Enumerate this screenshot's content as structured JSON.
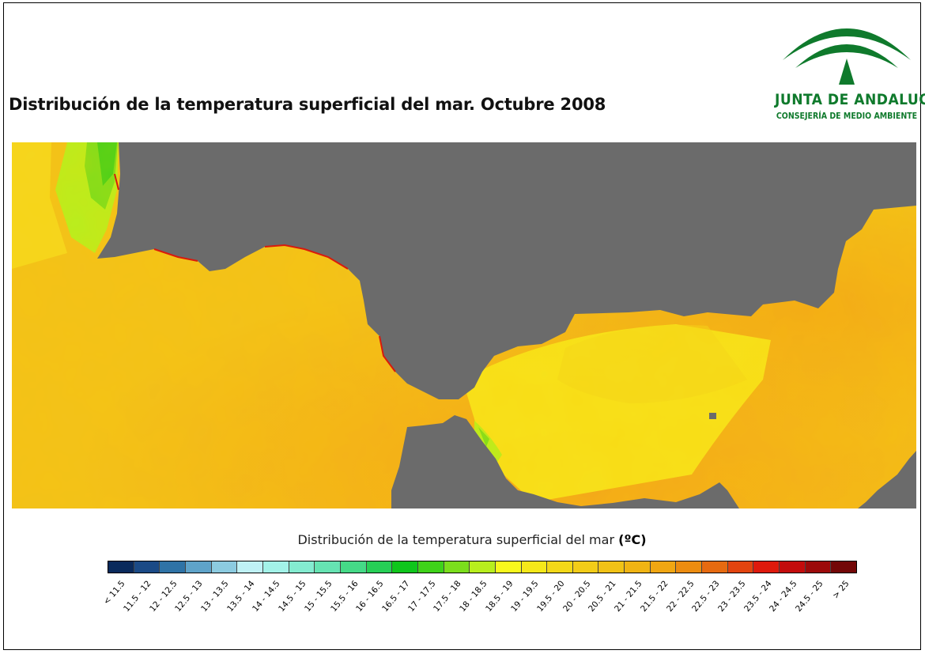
{
  "title": "Distribución de la temperatura superficial del mar. Octubre 2008",
  "logo": {
    "name": "JUNTA DE ANDALUCIA",
    "subtitle": "CONSEJERÍA DE MEDIO AMBIENTE",
    "color": "#0f7a2c"
  },
  "map": {
    "land_color": "#6b6b6b"
  },
  "legend": {
    "title": "Distribución de la temperatura superficial del mar",
    "unit": "(ºC)",
    "classes": [
      {
        "label": "< 11.5",
        "color": "#0a2a5c"
      },
      {
        "label": "11.5 - 12",
        "color": "#1b4a86"
      },
      {
        "label": "12 - 12.5",
        "color": "#2f73a6"
      },
      {
        "label": "12.5 - 13",
        "color": "#5fa3c9"
      },
      {
        "label": "13 - 13.5",
        "color": "#8ccbe0"
      },
      {
        "label": "13.5 - 14",
        "color": "#bff1f5"
      },
      {
        "label": "14 - 14.5",
        "color": "#a3f2e8"
      },
      {
        "label": "14.5 - 15",
        "color": "#84ebd0"
      },
      {
        "label": "15 - 15.5",
        "color": "#66e3b2"
      },
      {
        "label": "15.5 - 16",
        "color": "#45d987"
      },
      {
        "label": "16 - 16.5",
        "color": "#27cf56"
      },
      {
        "label": "16.5 - 17",
        "color": "#0fc61c"
      },
      {
        "label": "17 - 17.5",
        "color": "#3fd21a"
      },
      {
        "label": "17.5 - 18",
        "color": "#7bde1c"
      },
      {
        "label": "18 - 18.5",
        "color": "#b8ee1e"
      },
      {
        "label": "18.5 - 19",
        "color": "#f8f81c"
      },
      {
        "label": "19 - 19.5",
        "color": "#f5e81a"
      },
      {
        "label": "19.5 - 20",
        "color": "#f3d818"
      },
      {
        "label": "20 - 20.5",
        "color": "#f2cc18"
      },
      {
        "label": "20.5 - 21",
        "color": "#f1c216"
      },
      {
        "label": "21 - 21.5",
        "color": "#f0b414"
      },
      {
        "label": "21.5 - 22",
        "color": "#f0a612"
      },
      {
        "label": "22 - 22.5",
        "color": "#ec8c10"
      },
      {
        "label": "22.5 - 23",
        "color": "#e66a10"
      },
      {
        "label": "23 - 23.5",
        "color": "#e2440f"
      },
      {
        "label": "23.5 - 24",
        "color": "#de1a0c"
      },
      {
        "label": "24 - 24.5",
        "color": "#c30c0c"
      },
      {
        "label": "24.5 - 25",
        "color": "#9c0a0a"
      },
      {
        "label": "> 25",
        "color": "#730707"
      }
    ]
  }
}
